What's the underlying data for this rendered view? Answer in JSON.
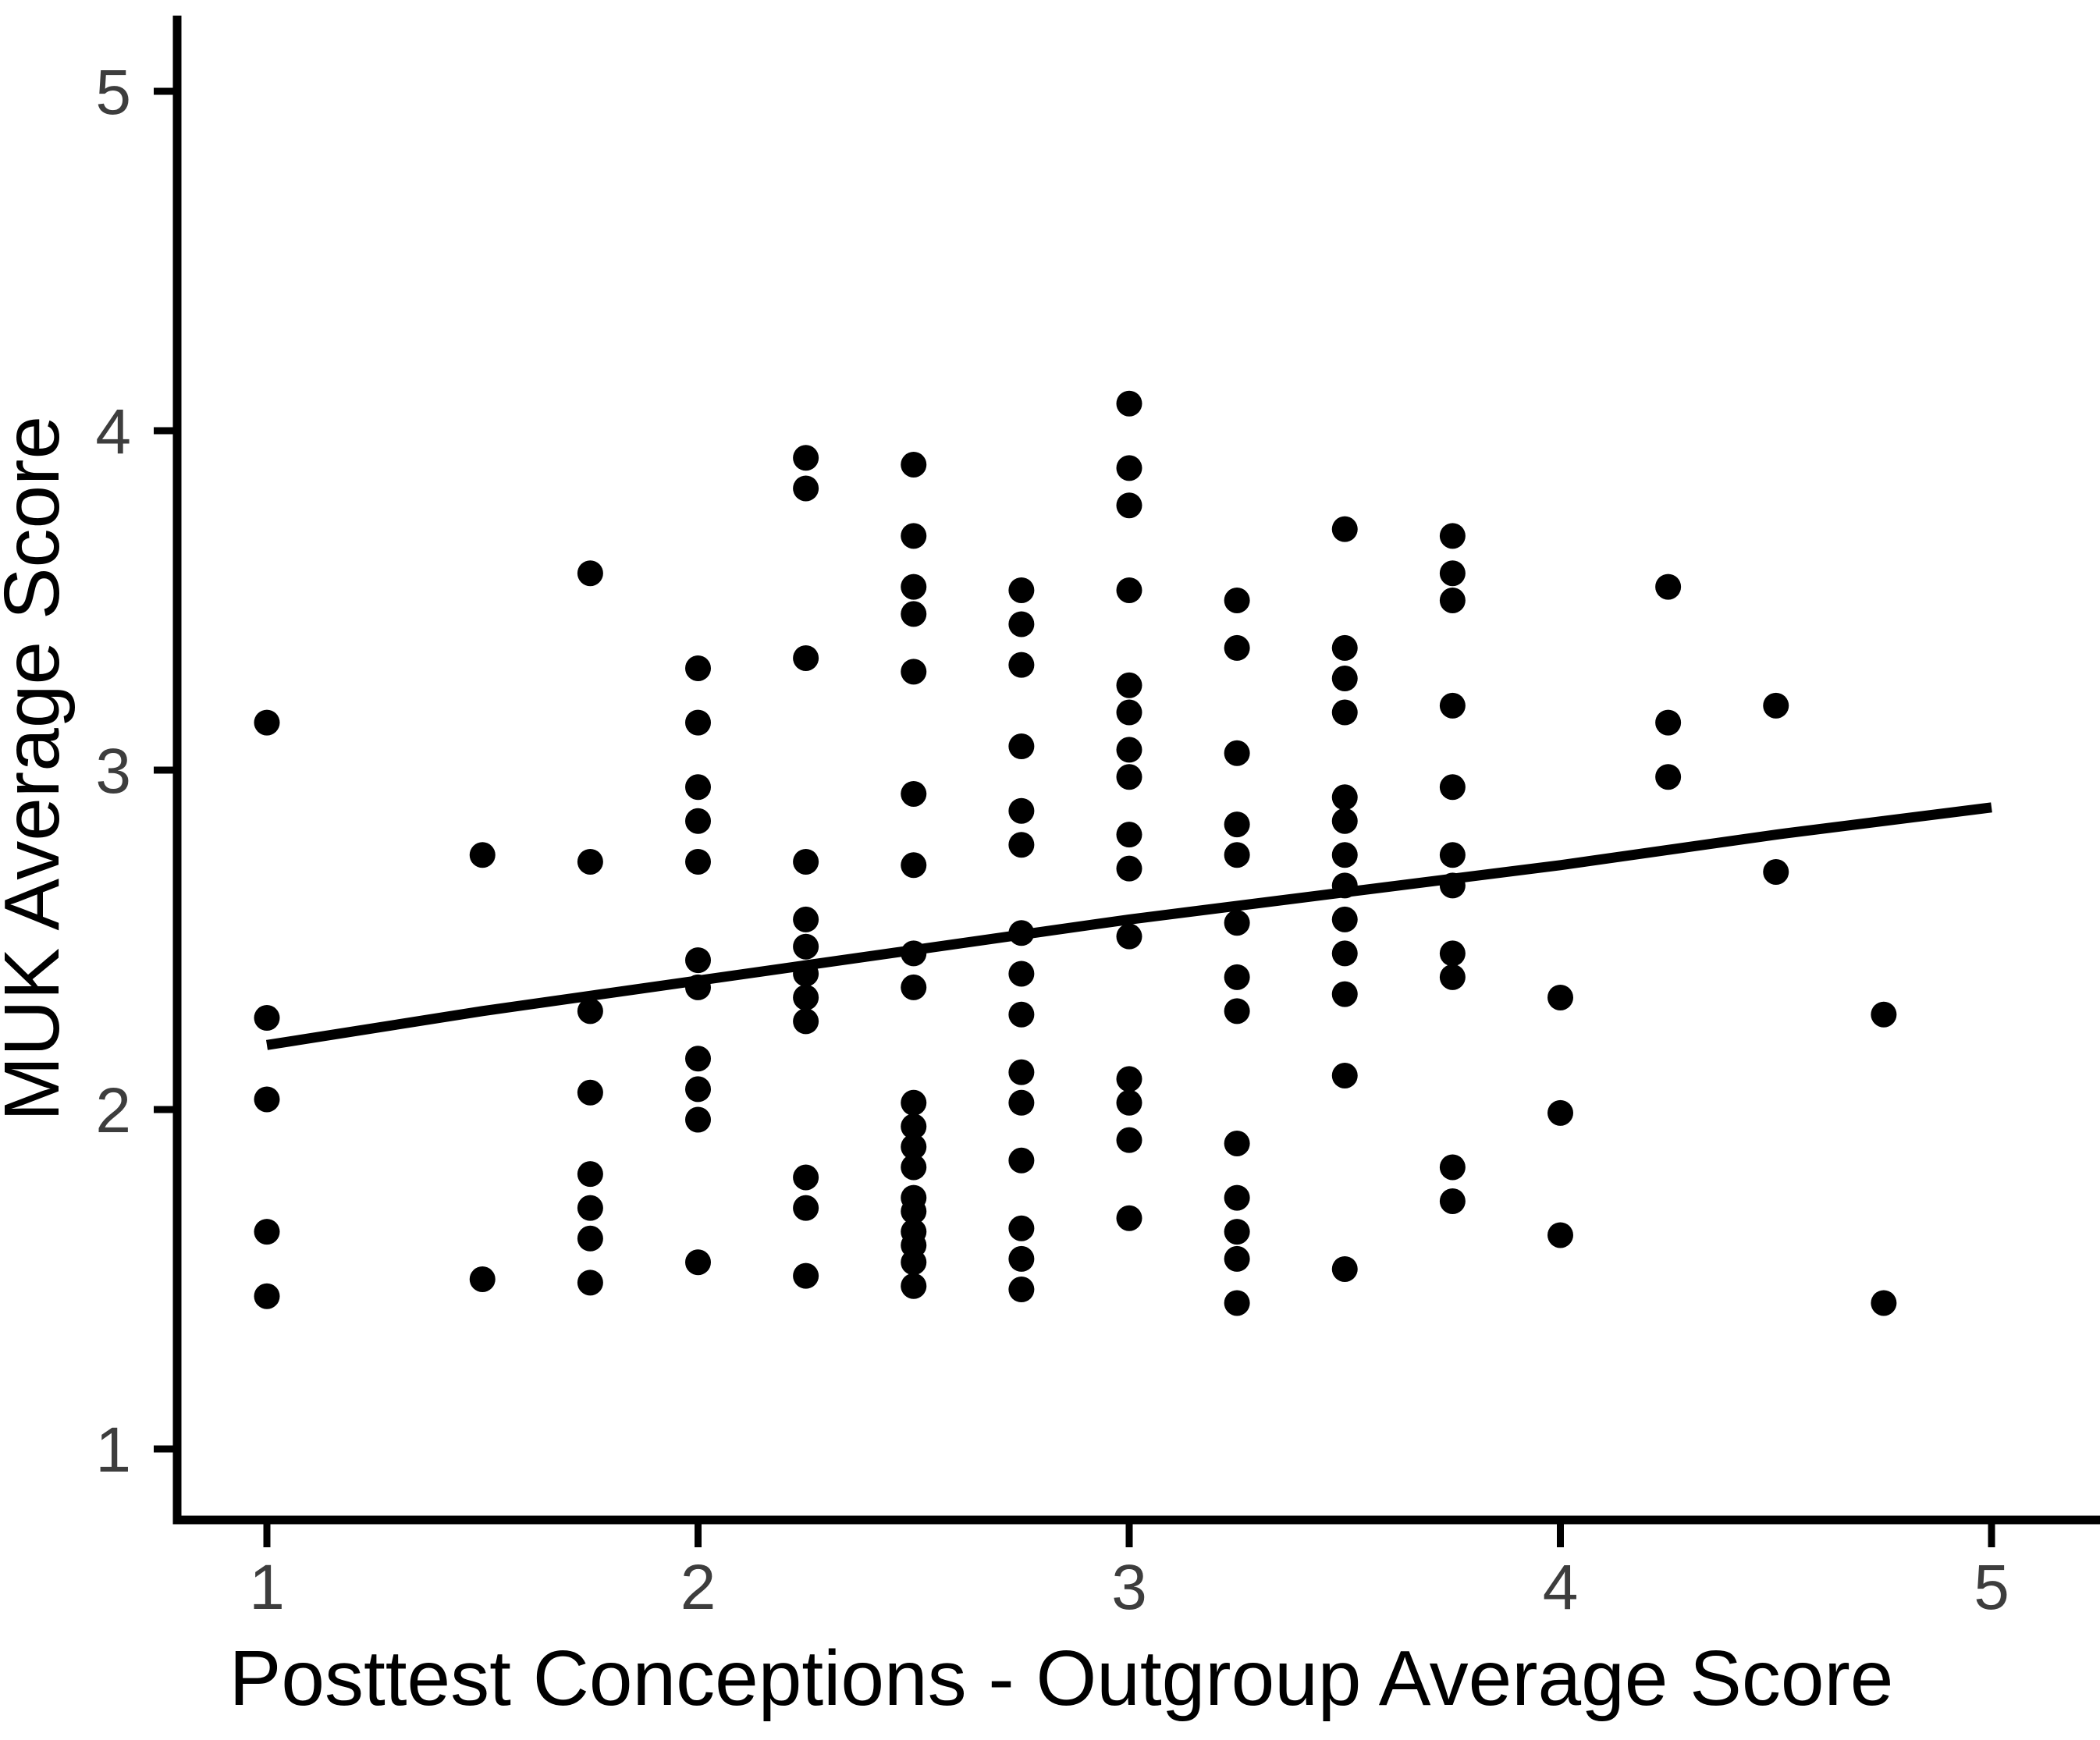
{
  "chart_data": {
    "type": "scatter",
    "title": "",
    "xlabel": "Posttest Conceptions - Outgroup Average Score",
    "ylabel": "MUK Average Score",
    "x_ticks": [
      1,
      2,
      3,
      4,
      5
    ],
    "y_ticks": [
      1,
      2,
      3,
      4,
      5
    ],
    "xlim": [
      0.79,
      5.25
    ],
    "ylim": [
      0.79,
      5.22
    ],
    "grid": false,
    "legend": false,
    "marker_color": "#000000",
    "line_color": "#000000",
    "axis_color": "#000000",
    "tick_label_color": "#3d3d3d",
    "points": [
      [
        1,
        3.14
      ],
      [
        1,
        2.27
      ],
      [
        1,
        2.03
      ],
      [
        1,
        1.64
      ],
      [
        1,
        1.45
      ],
      [
        1.5,
        2.75
      ],
      [
        1.5,
        1.5
      ],
      [
        1.75,
        3.58
      ],
      [
        1.75,
        2.73
      ],
      [
        1.75,
        2.29
      ],
      [
        1.75,
        2.05
      ],
      [
        1.75,
        1.81
      ],
      [
        1.75,
        1.71
      ],
      [
        1.75,
        1.62
      ],
      [
        1.75,
        1.49
      ],
      [
        2,
        3.3
      ],
      [
        2,
        3.14
      ],
      [
        2,
        2.95
      ],
      [
        2,
        2.85
      ],
      [
        2,
        2.73
      ],
      [
        2,
        2.44
      ],
      [
        2,
        2.36
      ],
      [
        2,
        2.15
      ],
      [
        2,
        2.06
      ],
      [
        2,
        1.97
      ],
      [
        2,
        1.55
      ],
      [
        2.25,
        3.92
      ],
      [
        2.25,
        3.83
      ],
      [
        2.25,
        3.33
      ],
      [
        2.25,
        2.73
      ],
      [
        2.25,
        2.56
      ],
      [
        2.25,
        2.48
      ],
      [
        2.25,
        2.4
      ],
      [
        2.25,
        2.33
      ],
      [
        2.25,
        2.26
      ],
      [
        2.25,
        1.8
      ],
      [
        2.25,
        1.71
      ],
      [
        2.25,
        1.51
      ],
      [
        2.5,
        3.9
      ],
      [
        2.5,
        3.69
      ],
      [
        2.5,
        3.54
      ],
      [
        2.5,
        3.46
      ],
      [
        2.5,
        3.29
      ],
      [
        2.5,
        2.93
      ],
      [
        2.5,
        2.72
      ],
      [
        2.5,
        2.46
      ],
      [
        2.5,
        2.36
      ],
      [
        2.5,
        2.02
      ],
      [
        2.5,
        1.95
      ],
      [
        2.5,
        1.89
      ],
      [
        2.5,
        1.83
      ],
      [
        2.5,
        1.74
      ],
      [
        2.5,
        1.7
      ],
      [
        2.5,
        1.64
      ],
      [
        2.5,
        1.6
      ],
      [
        2.5,
        1.55
      ],
      [
        2.5,
        1.48
      ],
      [
        2.75,
        3.53
      ],
      [
        2.75,
        3.43
      ],
      [
        2.75,
        3.31
      ],
      [
        2.75,
        3.07
      ],
      [
        2.75,
        2.88
      ],
      [
        2.75,
        2.78
      ],
      [
        2.75,
        2.52
      ],
      [
        2.75,
        2.4
      ],
      [
        2.75,
        2.28
      ],
      [
        2.75,
        2.11
      ],
      [
        2.75,
        2.02
      ],
      [
        2.75,
        1.85
      ],
      [
        2.75,
        1.65
      ],
      [
        2.75,
        1.56
      ],
      [
        2.75,
        1.47
      ],
      [
        3,
        4.08
      ],
      [
        3,
        3.89
      ],
      [
        3,
        3.78
      ],
      [
        3,
        3.53
      ],
      [
        3,
        3.25
      ],
      [
        3,
        3.17
      ],
      [
        3,
        3.06
      ],
      [
        3,
        2.98
      ],
      [
        3,
        2.81
      ],
      [
        3,
        2.71
      ],
      [
        3,
        2.51
      ],
      [
        3,
        2.09
      ],
      [
        3,
        2.02
      ],
      [
        3,
        1.91
      ],
      [
        3,
        1.68
      ],
      [
        3.25,
        3.5
      ],
      [
        3.25,
        3.36
      ],
      [
        3.25,
        3.05
      ],
      [
        3.25,
        2.84
      ],
      [
        3.25,
        2.75
      ],
      [
        3.25,
        2.55
      ],
      [
        3.25,
        2.39
      ],
      [
        3.25,
        2.29
      ],
      [
        3.25,
        1.9
      ],
      [
        3.25,
        1.74
      ],
      [
        3.25,
        1.64
      ],
      [
        3.25,
        1.56
      ],
      [
        3.25,
        1.43
      ],
      [
        3.5,
        3.71
      ],
      [
        3.5,
        3.36
      ],
      [
        3.5,
        3.27
      ],
      [
        3.5,
        3.17
      ],
      [
        3.5,
        2.92
      ],
      [
        3.5,
        2.85
      ],
      [
        3.5,
        2.75
      ],
      [
        3.5,
        2.66
      ],
      [
        3.5,
        2.56
      ],
      [
        3.5,
        2.46
      ],
      [
        3.5,
        2.34
      ],
      [
        3.5,
        2.1
      ],
      [
        3.5,
        1.53
      ],
      [
        3.75,
        3.69
      ],
      [
        3.75,
        3.58
      ],
      [
        3.75,
        3.5
      ],
      [
        3.75,
        3.19
      ],
      [
        3.75,
        2.95
      ],
      [
        3.75,
        2.75
      ],
      [
        3.75,
        2.66
      ],
      [
        3.75,
        2.46
      ],
      [
        3.75,
        2.39
      ],
      [
        3.75,
        1.83
      ],
      [
        3.75,
        1.73
      ],
      [
        4,
        2.33
      ],
      [
        4,
        1.99
      ],
      [
        4,
        1.63
      ],
      [
        4.25,
        3.54
      ],
      [
        4.25,
        3.14
      ],
      [
        4.25,
        2.98
      ],
      [
        4.5,
        3.19
      ],
      [
        4.5,
        2.7
      ],
      [
        4.75,
        2.28
      ],
      [
        4.75,
        1.43
      ]
    ],
    "trend_line": [
      [
        1.0,
        2.19
      ],
      [
        1.5,
        2.29
      ],
      [
        2.0,
        2.38
      ],
      [
        2.5,
        2.47
      ],
      [
        3.0,
        2.56
      ],
      [
        3.5,
        2.64
      ],
      [
        4.0,
        2.72
      ],
      [
        4.5,
        2.81
      ],
      [
        5.0,
        2.89
      ]
    ]
  }
}
